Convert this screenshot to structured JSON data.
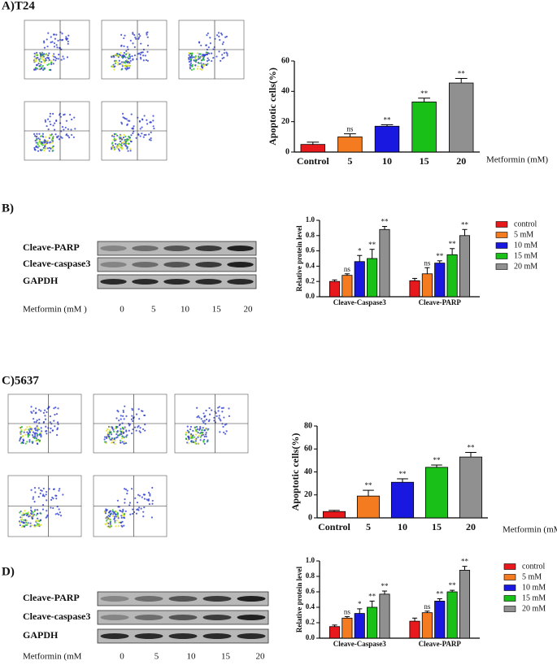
{
  "figure": {
    "panels": [
      "A)T24",
      "B)",
      "C)5637",
      "D)"
    ],
    "blots": [
      {
        "rows": [
          "Cleave-PARP",
          "Cleave-caspase3",
          "GAPDH"
        ],
        "dose_label": "Metformin (mM  )",
        "doses": [
          "0",
          "5",
          "10",
          "15",
          "20"
        ]
      },
      {
        "rows": [
          "Cleave-PARP",
          "Cleave-caspase3",
          "GAPDH"
        ],
        "dose_label": "Metformin (mM",
        "doses": [
          "0",
          "5",
          "10",
          "15",
          "20"
        ]
      }
    ]
  },
  "chart_data": [
    {
      "type": "bar",
      "y_label": "Apoptotic cells(%)",
      "x_label": "Metformin (mM)",
      "categories": [
        "Control",
        "5",
        "10",
        "15",
        "20"
      ],
      "values": [
        5,
        10,
        17,
        33,
        45.5
      ],
      "errors": [
        1.5,
        2,
        1,
        2.5,
        3
      ],
      "colors": [
        "#e8191c",
        "#f47b20",
        "#1818e0",
        "#18c018",
        "#909090"
      ],
      "annotations": [
        null,
        "ns",
        "**",
        "**",
        "**"
      ],
      "ylim": [
        0,
        60
      ],
      "yticks": [
        0,
        20,
        40,
        60
      ]
    },
    {
      "type": "bar",
      "y_label": "Relative protein level",
      "categories": [
        "Cleave-Caspase3",
        "Cleave-PARP"
      ],
      "series": [
        {
          "name": "control",
          "color": "#e8191c",
          "values": [
            0.2,
            0.21
          ],
          "errors": [
            0.02,
            0.03
          ],
          "annotations": [
            null,
            null
          ]
        },
        {
          "name": "5  mM",
          "color": "#f47b20",
          "values": [
            0.28,
            0.3
          ],
          "errors": [
            0.02,
            0.08
          ],
          "annotations": [
            "ns",
            "ns"
          ]
        },
        {
          "name": "10 mM",
          "color": "#1818e0",
          "values": [
            0.46,
            0.44
          ],
          "errors": [
            0.08,
            0.03
          ],
          "annotations": [
            "*",
            "**"
          ]
        },
        {
          "name": "15 mM",
          "color": "#18c018",
          "values": [
            0.5,
            0.55
          ],
          "errors": [
            0.12,
            0.08
          ],
          "annotations": [
            "**",
            "**"
          ]
        },
        {
          "name": "20 mM",
          "color": "#909090",
          "values": [
            0.88,
            0.8
          ],
          "errors": [
            0.04,
            0.08
          ],
          "annotations": [
            "**",
            "**"
          ]
        }
      ],
      "ylim": [
        0,
        1
      ],
      "yticks": [
        {
          "value": 0,
          "label": "0.0"
        },
        0.2,
        0.4,
        0.6,
        0.8,
        {
          "value": 1,
          "label": "1.0"
        }
      ]
    },
    {
      "type": "bar",
      "y_label": "Apoptotic cells(%)",
      "x_label": "Metformin (mM)",
      "categories": [
        "Control",
        "5",
        "10",
        "15",
        "20"
      ],
      "values": [
        5.5,
        19,
        31,
        44,
        53
      ],
      "errors": [
        1,
        5,
        3,
        2,
        4
      ],
      "colors": [
        "#e8191c",
        "#f47b20",
        "#1818e0",
        "#18c018",
        "#909090"
      ],
      "annotations": [
        null,
        "**",
        "**",
        "**",
        "**"
      ],
      "ylim": [
        0,
        80
      ],
      "yticks": [
        0,
        20,
        40,
        60,
        80
      ]
    },
    {
      "type": "bar",
      "y_label": "Relative protein level",
      "categories": [
        "Cleave-Caspase3",
        "Cleave-PARP"
      ],
      "series": [
        {
          "name": "control",
          "color": "#e8191c",
          "values": [
            0.15,
            0.22
          ],
          "errors": [
            0.02,
            0.04
          ],
          "annotations": [
            null,
            null
          ]
        },
        {
          "name": "5  mM",
          "color": "#f47b20",
          "values": [
            0.26,
            0.33
          ],
          "errors": [
            0.02,
            0.02
          ],
          "annotations": [
            "ns",
            "ns"
          ]
        },
        {
          "name": "10 mM",
          "color": "#1818e0",
          "values": [
            0.32,
            0.48
          ],
          "errors": [
            0.06,
            0.03
          ],
          "annotations": [
            "*",
            "**"
          ]
        },
        {
          "name": "15 mM",
          "color": "#18c018",
          "values": [
            0.4,
            0.6
          ],
          "errors": [
            0.08,
            0.02
          ],
          "annotations": [
            "**",
            "**"
          ]
        },
        {
          "name": "20 mM",
          "color": "#909090",
          "values": [
            0.57,
            0.88
          ],
          "errors": [
            0.04,
            0.05
          ],
          "annotations": [
            "**",
            "**"
          ]
        }
      ],
      "ylim": [
        0,
        1
      ],
      "yticks": [
        {
          "value": 0,
          "label": "0.0"
        },
        0.2,
        0.4,
        0.6,
        0.8,
        {
          "value": 1,
          "label": "1.0"
        }
      ]
    }
  ]
}
